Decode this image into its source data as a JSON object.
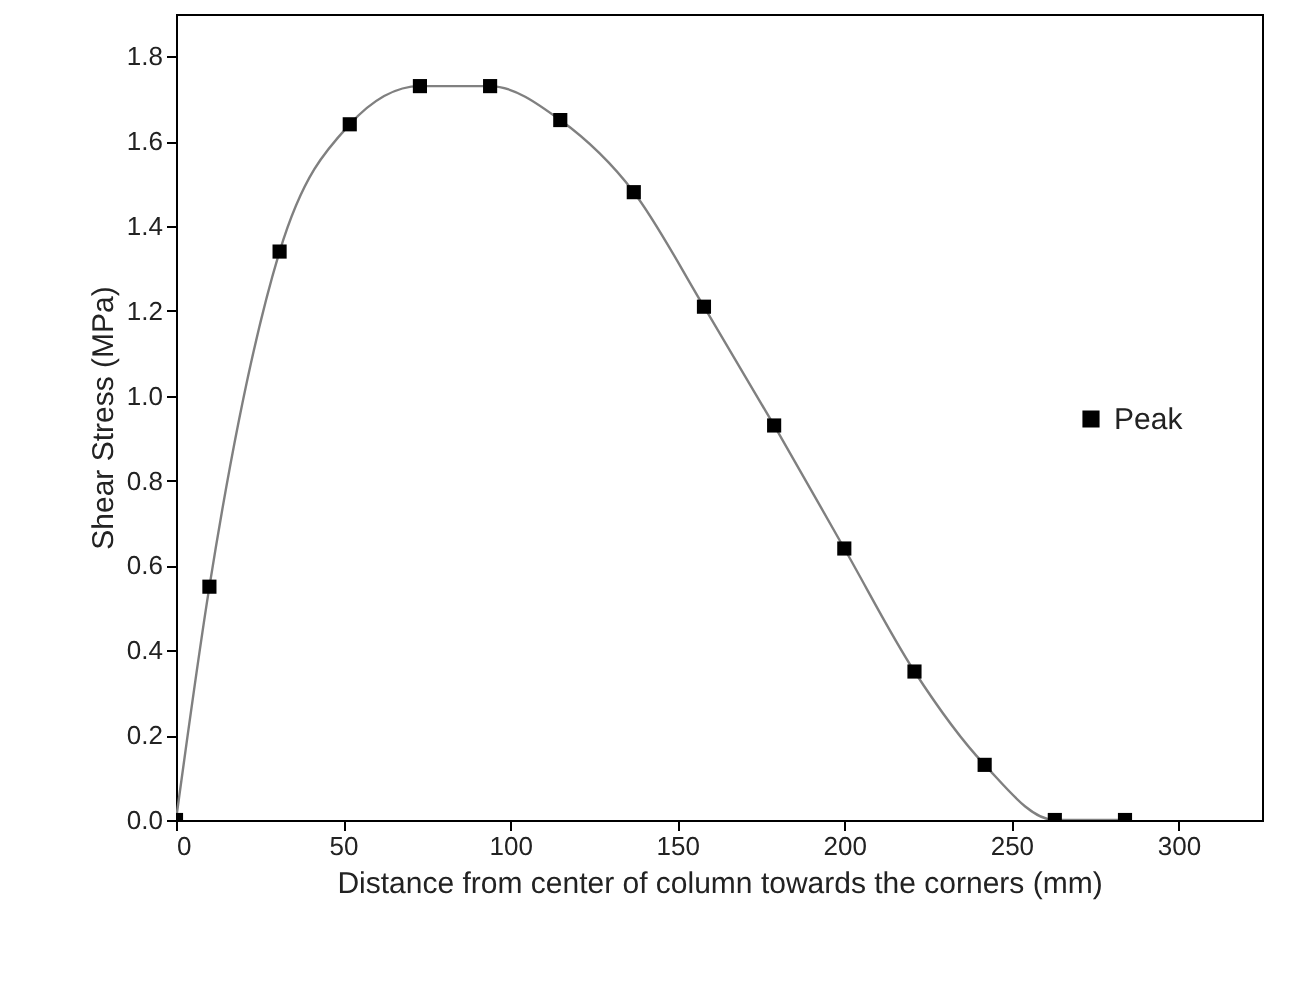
{
  "chart_data": {
    "type": "line",
    "xlabel": "Distance from center of column towards the corners (mm)",
    "ylabel": "Shear Stress (MPa)",
    "x": [
      0,
      10,
      31,
      52,
      73,
      94,
      115,
      137,
      158,
      179,
      200,
      221,
      242,
      263,
      284
    ],
    "series": [
      {
        "name": "Peak",
        "color": "#808080",
        "values": [
          0,
          0.55,
          1.34,
          1.64,
          1.73,
          1.73,
          1.65,
          1.48,
          1.21,
          0.93,
          0.64,
          0.35,
          0.13,
          0,
          0
        ]
      }
    ],
    "xlim": [
      0,
      325
    ],
    "xticks": [
      0,
      50,
      100,
      150,
      200,
      250,
      300
    ],
    "ylim": [
      0,
      1.9
    ],
    "yticks": [
      {
        "value": 0,
        "label": "0.0"
      },
      {
        "value": 0.2,
        "label": "0.2"
      },
      {
        "value": 0.4,
        "label": "0.4"
      },
      {
        "value": 0.6,
        "label": "0.6"
      },
      {
        "value": 0.8,
        "label": "0.8"
      },
      {
        "value": 1,
        "label": "1.0"
      },
      {
        "value": 1.2,
        "label": "1.2"
      },
      {
        "value": 1.4,
        "label": "1.4"
      },
      {
        "value": 1.6,
        "label": "1.6"
      },
      {
        "value": 1.8,
        "label": "1.8"
      }
    ],
    "marker": "square",
    "line_style": "solid",
    "legend": "right",
    "grid": false
  }
}
